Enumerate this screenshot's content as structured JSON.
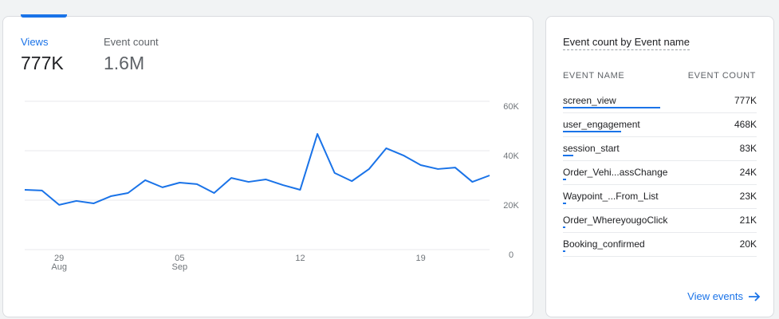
{
  "tabs": [
    {
      "label": "Views",
      "value": "777K"
    },
    {
      "label": "Event count",
      "value": "1.6M"
    }
  ],
  "chart_data": {
    "type": "line",
    "categories": [
      null,
      null,
      "29 Aug",
      null,
      null,
      null,
      null,
      null,
      null,
      "05 Sep",
      null,
      null,
      null,
      null,
      null,
      null,
      "12",
      null,
      null,
      null,
      null,
      null,
      null,
      "19",
      null,
      null,
      null,
      null
    ],
    "values": [
      24200,
      23900,
      18100,
      19700,
      18700,
      21600,
      22900,
      28100,
      25200,
      27100,
      26500,
      22900,
      29000,
      27400,
      28400,
      26100,
      24200,
      46800,
      31000,
      27700,
      32600,
      41000,
      38100,
      34200,
      32600,
      33200,
      27400,
      30000
    ],
    "color": "#1a73e8",
    "ylim": [
      0,
      60000
    ],
    "yticks": [
      0,
      {
        "value": 20000,
        "label": "20K"
      },
      {
        "value": 40000,
        "label": "40K"
      },
      {
        "value": 60000,
        "label": "60K"
      }
    ],
    "grid": true
  },
  "table": {
    "title": "Event count by Event name",
    "columns": [
      "EVENT NAME",
      "EVENT COUNT"
    ],
    "rows": [
      {
        "name": "screen_view",
        "count": {
          "value": 777000,
          "label": "777K"
        }
      },
      {
        "name": "user_engagement",
        "count": {
          "value": 468000,
          "label": "468K"
        }
      },
      {
        "name": "session_start",
        "count": {
          "value": 83000,
          "label": "83K"
        }
      },
      {
        "name": "Order_Vehi...assChange",
        "count": {
          "value": 24000,
          "label": "24K"
        }
      },
      {
        "name": "Waypoint_...From_List",
        "count": {
          "value": 23000,
          "label": "23K"
        }
      },
      {
        "name": "Order_WhereyougoClick",
        "count": {
          "value": 21000,
          "label": "21K"
        }
      },
      {
        "name": "Booking_confirmed",
        "count": {
          "value": 20000,
          "label": "20K"
        }
      }
    ]
  },
  "link": "View events"
}
